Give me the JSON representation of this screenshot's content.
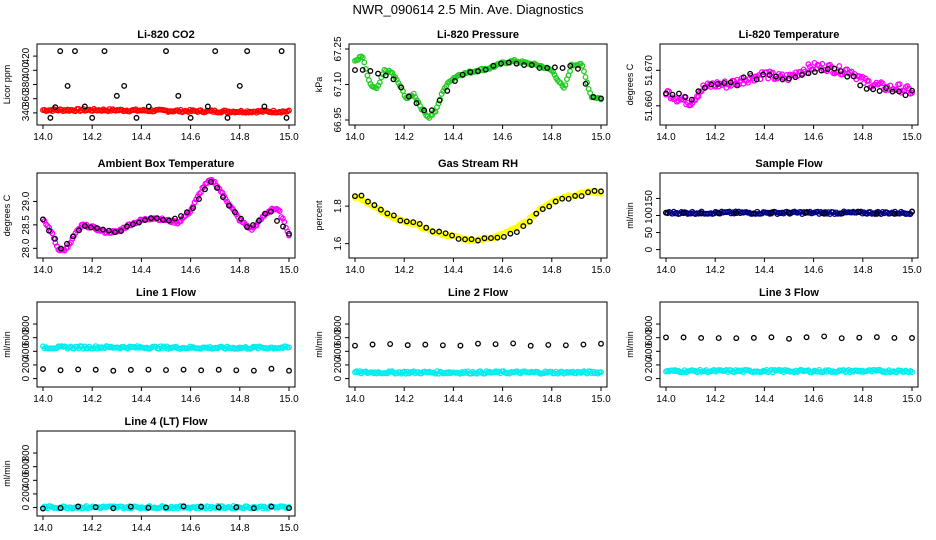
{
  "title": "NWR_090614  2.5 Min. Ave. Diagnostics",
  "colors": {
    "red": "#ff0000",
    "green": "#22cc22",
    "magenta": "#ff00ff",
    "yellow": "#ffff00",
    "navy": "#000080",
    "cyan": "#00eeee",
    "black": "#000000"
  },
  "chart_data": [
    {
      "type": "scatter",
      "title": "Li-820 CO2",
      "ylabel": "Licor ppm",
      "xlim": [
        14.0,
        15.0
      ],
      "ylim": [
        330,
        430
      ],
      "x_ticks": [
        "14.0",
        "14.2",
        "14.4",
        "14.6",
        "14.8",
        "15.0"
      ],
      "y_ticks": [
        "340",
        "360",
        "380",
        "400",
        "420"
      ],
      "series": [
        {
          "color": "red",
          "values_x": [
            14.0,
            14.25,
            14.5,
            14.75,
            15.0
          ],
          "values_y": [
            344,
            344,
            343,
            342,
            342
          ]
        },
        {
          "color": "black",
          "values_x": [
            14.03,
            14.05,
            14.07,
            14.1,
            14.13,
            14.17,
            14.2,
            14.25,
            14.3,
            14.33,
            14.38,
            14.43,
            14.5,
            14.55,
            14.6,
            14.67,
            14.7,
            14.75,
            14.8,
            14.83,
            14.9,
            14.97,
            14.99
          ],
          "values_y": [
            333,
            348,
            427,
            378,
            427,
            349,
            333,
            427,
            364,
            378,
            333,
            349,
            427,
            364,
            333,
            349,
            427,
            333,
            378,
            427,
            349,
            427,
            333
          ]
        }
      ]
    },
    {
      "type": "scatter",
      "title": "Li-820 Pressure",
      "ylabel": "kPa",
      "xlim": [
        14.0,
        15.0
      ],
      "ylim": [
        66.95,
        67.25
      ],
      "x_ticks": [
        "14.0",
        "14.2",
        "14.4",
        "14.6",
        "14.8",
        "15.0"
      ],
      "y_ticks": [
        "66.95",
        "67.10",
        "67.25"
      ],
      "series": [
        {
          "color": "green",
          "values_x": [
            14.0,
            14.03,
            14.06,
            14.09,
            14.12,
            14.15,
            14.18,
            14.21,
            14.24,
            14.27,
            14.3,
            14.33,
            14.36,
            14.39,
            14.42,
            14.46,
            14.5,
            14.55,
            14.6,
            14.65,
            14.7,
            14.75,
            14.8,
            14.85,
            14.88,
            14.92,
            14.96,
            15.0
          ],
          "values_y": [
            67.2,
            67.22,
            67.1,
            67.08,
            67.16,
            67.15,
            67.1,
            67.04,
            67.06,
            67.0,
            66.96,
            66.99,
            67.08,
            67.12,
            67.14,
            67.15,
            67.16,
            67.17,
            67.19,
            67.2,
            67.19,
            67.18,
            67.16,
            67.08,
            67.18,
            67.19,
            67.05,
            67.04
          ]
        },
        {
          "color": "black",
          "values_x": [
            14.05,
            14.14,
            14.25,
            14.3,
            14.42,
            14.5,
            14.62,
            14.7,
            14.8,
            14.9,
            14.97
          ],
          "values_y": [
            67.16,
            67.14,
            67.02,
            66.98,
            67.13,
            67.16,
            67.19,
            67.18,
            67.17,
            67.18,
            67.04
          ]
        }
      ]
    },
    {
      "type": "scatter",
      "title": "Li-820 Temperature",
      "ylabel": "degrees C",
      "xlim": [
        14.0,
        15.0
      ],
      "ylim": [
        51.656,
        51.676
      ],
      "x_ticks": [
        "14.0",
        "14.2",
        "14.4",
        "14.6",
        "14.8",
        "15.0"
      ],
      "y_ticks": [
        "51.660",
        "51.670"
      ],
      "series": [
        {
          "color": "magenta",
          "values_x": [
            14.0,
            14.05,
            14.1,
            14.15,
            14.2,
            14.25,
            14.3,
            14.35,
            14.4,
            14.45,
            14.5,
            14.55,
            14.6,
            14.65,
            14.7,
            14.75,
            14.8,
            14.85,
            14.9,
            14.95,
            15.0
          ],
          "values_y": [
            51.664,
            51.662,
            51.661,
            51.665,
            51.666,
            51.666,
            51.667,
            51.668,
            51.669,
            51.668,
            51.668,
            51.67,
            51.671,
            51.671,
            51.67,
            51.67,
            51.667,
            51.666,
            51.665,
            51.665,
            51.664
          ]
        },
        {
          "color": "black",
          "values_x": [
            14.03,
            14.1,
            14.17,
            14.24,
            14.3,
            14.4,
            14.5,
            14.58,
            14.65,
            14.72,
            14.8,
            14.88,
            14.95
          ],
          "values_y": [
            51.663,
            51.662,
            51.665,
            51.666,
            51.667,
            51.669,
            51.668,
            51.67,
            51.671,
            51.67,
            51.666,
            51.665,
            51.664
          ]
        }
      ]
    },
    {
      "type": "scatter",
      "title": "Ambient Box Temperature",
      "ylabel": "degrees C",
      "xlim": [
        14.0,
        15.0
      ],
      "ylim": [
        27.9,
        29.5
      ],
      "x_ticks": [
        "14.0",
        "14.2",
        "14.4",
        "14.6",
        "14.8",
        "15.0"
      ],
      "y_ticks": [
        "28.0",
        "28.5",
        "29.0"
      ],
      "series": [
        {
          "color": "magenta",
          "values_x": [
            14.0,
            14.03,
            14.06,
            14.08,
            14.1,
            14.13,
            14.16,
            14.2,
            14.25,
            14.3,
            14.35,
            14.4,
            14.45,
            14.5,
            14.55,
            14.6,
            14.65,
            14.68,
            14.7,
            14.75,
            14.8,
            14.85,
            14.9,
            14.93,
            14.96,
            15.0
          ],
          "values_y": [
            28.6,
            28.4,
            28.0,
            27.95,
            28.0,
            28.3,
            28.5,
            28.45,
            28.35,
            28.35,
            28.5,
            28.6,
            28.65,
            28.6,
            28.55,
            28.8,
            29.3,
            29.45,
            29.4,
            29.0,
            28.6,
            28.4,
            28.7,
            28.85,
            28.8,
            28.3
          ]
        },
        {
          "color": "black",
          "values_x": [
            14.0,
            14.08,
            14.16,
            14.24,
            14.3,
            14.38,
            14.45,
            14.52,
            14.6,
            14.68,
            14.76,
            14.84,
            14.92,
            15.0
          ],
          "values_y": [
            28.6,
            27.95,
            28.5,
            28.4,
            28.35,
            28.55,
            28.65,
            28.6,
            28.8,
            29.45,
            28.9,
            28.4,
            28.8,
            28.3
          ]
        }
      ]
    },
    {
      "type": "scatter",
      "title": "Gas Stream RH",
      "ylabel": "percent",
      "xlim": [
        14.0,
        15.0
      ],
      "ylim": [
        1.55,
        1.95
      ],
      "x_ticks": [
        "14.0",
        "14.2",
        "14.4",
        "14.6",
        "14.8",
        "15.0"
      ],
      "y_ticks": [
        "1.6",
        "1.8"
      ],
      "series": [
        {
          "color": "yellow",
          "values_x": [
            14.0,
            14.05,
            14.1,
            14.15,
            14.2,
            14.25,
            14.3,
            14.35,
            14.4,
            14.45,
            14.5,
            14.55,
            14.6,
            14.65,
            14.7,
            14.75,
            14.8,
            14.85,
            14.9,
            14.95,
            15.0
          ],
          "values_y": [
            1.85,
            1.82,
            1.78,
            1.74,
            1.72,
            1.7,
            1.67,
            1.65,
            1.64,
            1.62,
            1.62,
            1.63,
            1.65,
            1.68,
            1.72,
            1.78,
            1.82,
            1.85,
            1.86,
            1.88,
            1.87
          ]
        },
        {
          "color": "black",
          "values_x": [
            14.02,
            14.1,
            14.18,
            14.26,
            14.34,
            14.42,
            14.5,
            14.58,
            14.66,
            14.74,
            14.82,
            14.9,
            14.98
          ],
          "values_y": [
            1.86,
            1.78,
            1.73,
            1.7,
            1.66,
            1.63,
            1.62,
            1.63,
            1.66,
            1.76,
            1.83,
            1.85,
            1.88
          ]
        }
      ]
    },
    {
      "type": "scatter",
      "title": "Sample Flow",
      "ylabel": "ml/min",
      "xlim": [
        14.0,
        15.0
      ],
      "ylim": [
        -10,
        210
      ],
      "x_ticks": [
        "14.0",
        "14.2",
        "14.4",
        "14.6",
        "14.8",
        "15.0"
      ],
      "y_ticks": [
        "0",
        "50",
        "100",
        "150"
      ],
      "series": [
        {
          "color": "navy",
          "values_x": [
            14.0,
            14.25,
            14.5,
            14.75,
            15.0
          ],
          "values_y": [
            108,
            108,
            108,
            108,
            108
          ]
        },
        {
          "color": "black",
          "values_x": [
            14.0,
            14.25,
            14.5,
            14.75,
            15.0
          ],
          "values_y": [
            108,
            108,
            108,
            108,
            108
          ]
        }
      ]
    },
    {
      "type": "scatter",
      "title": "Line 1 Flow",
      "ylabel": "ml/min",
      "xlim": [
        14.0,
        15.0
      ],
      "ylim": [
        -50,
        1050
      ],
      "x_ticks": [
        "14.0",
        "14.2",
        "14.4",
        "14.6",
        "14.8",
        "15.0"
      ],
      "y_ticks": [
        "0",
        "200",
        "400",
        "600",
        "800"
      ],
      "series": [
        {
          "color": "cyan",
          "values_x": [
            14.0,
            14.25,
            14.5,
            14.75,
            15.0
          ],
          "values_y": [
            455,
            460,
            455,
            450,
            455
          ]
        },
        {
          "color": "black",
          "values_x": [
            14.0,
            14.25,
            14.5,
            14.75,
            15.0
          ],
          "values_y": [
            130,
            130,
            130,
            130,
            130
          ]
        }
      ]
    },
    {
      "type": "scatter",
      "title": "Line 2 Flow",
      "ylabel": "ml/min",
      "xlim": [
        14.0,
        15.0
      ],
      "ylim": [
        -50,
        1050
      ],
      "x_ticks": [
        "14.0",
        "14.2",
        "14.4",
        "14.6",
        "14.8",
        "15.0"
      ],
      "y_ticks": [
        "0",
        "200",
        "400",
        "600",
        "800"
      ],
      "series": [
        {
          "color": "cyan",
          "values_x": [
            14.0,
            14.25,
            14.5,
            14.75,
            15.0
          ],
          "values_y": [
            90,
            90,
            90,
            90,
            90
          ]
        },
        {
          "color": "black",
          "values_x": [
            14.0,
            14.25,
            14.5,
            14.75,
            15.0
          ],
          "values_y": [
            500,
            500,
            500,
            500,
            500
          ]
        }
      ]
    },
    {
      "type": "scatter",
      "title": "Line 3 Flow",
      "ylabel": "ml/min",
      "xlim": [
        14.0,
        15.0
      ],
      "ylim": [
        -50,
        1050
      ],
      "x_ticks": [
        "14.0",
        "14.2",
        "14.4",
        "14.6",
        "14.8",
        "15.0"
      ],
      "y_ticks": [
        "0",
        "200",
        "400",
        "600",
        "800"
      ],
      "series": [
        {
          "color": "cyan",
          "values_x": [
            14.0,
            14.25,
            14.5,
            14.75,
            15.0
          ],
          "values_y": [
            110,
            110,
            110,
            110,
            110
          ]
        },
        {
          "color": "black",
          "values_x": [
            14.0,
            14.25,
            14.5,
            14.75,
            15.0
          ],
          "values_y": [
            600,
            600,
            600,
            600,
            600
          ]
        }
      ]
    },
    {
      "type": "scatter",
      "title": "Line 4 (LT) Flow",
      "ylabel": "ml/min",
      "xlim": [
        14.0,
        15.0
      ],
      "ylim": [
        -50,
        1050
      ],
      "x_ticks": [
        "14.0",
        "14.2",
        "14.4",
        "14.6",
        "14.8",
        "15.0"
      ],
      "y_ticks": [
        "0",
        "200",
        "400",
        "600",
        "800"
      ],
      "series": [
        {
          "color": "cyan",
          "values_x": [
            14.0,
            14.25,
            14.5,
            14.75,
            15.0
          ],
          "values_y": [
            5,
            5,
            5,
            5,
            5
          ]
        },
        {
          "color": "black",
          "values_x": [
            14.0,
            14.25,
            14.5,
            14.75,
            15.0
          ],
          "values_y": [
            5,
            5,
            5,
            5,
            5
          ]
        }
      ]
    }
  ]
}
